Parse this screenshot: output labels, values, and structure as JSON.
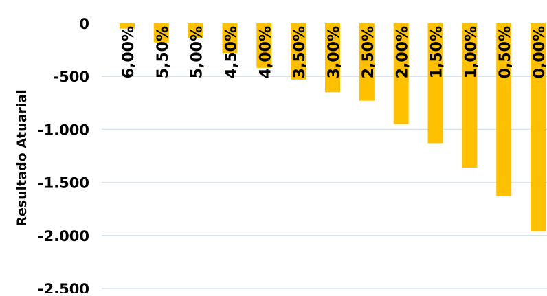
{
  "chart_data": {
    "type": "bar",
    "title": "",
    "xlabel": "",
    "ylabel": "Resultado  Atuarial",
    "categories": [
      "6,00%",
      "5,50%",
      "5,00%",
      "4,50%",
      "4,00%",
      "3,50%",
      "3,00%",
      "2,50%",
      "2,00%",
      "1,50%",
      "1,00%",
      "0,50%",
      "0,00%"
    ],
    "values": [
      -50,
      -180,
      -140,
      -280,
      -420,
      -530,
      -650,
      -730,
      -950,
      -1130,
      -1360,
      -1630,
      -1960
    ],
    "ylim": [
      -2500,
      0
    ],
    "yticks": [
      0,
      -500,
      -1000,
      -1500,
      -2000,
      -2500
    ],
    "ytick_labels": [
      "0",
      "-500",
      "-1.000",
      "-1.500",
      "-2.000",
      "-2.500"
    ],
    "grid": true,
    "legend": "none",
    "colors": {
      "bar": "#FFC000",
      "grid": "#D6E4F0",
      "text": "#000000"
    }
  }
}
